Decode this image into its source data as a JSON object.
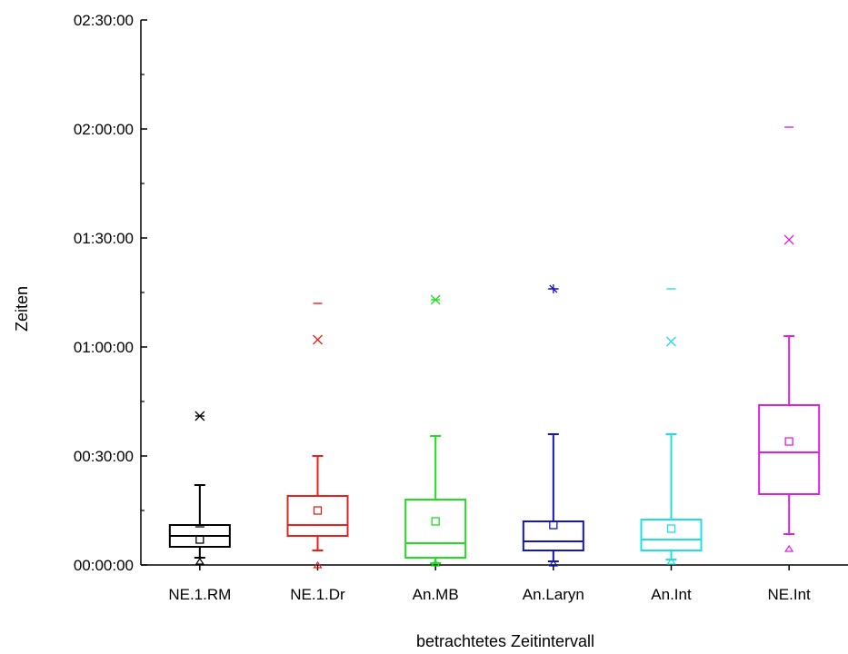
{
  "chart_data": {
    "type": "boxplot",
    "xlabel": "betrachtetes Zeitintervall",
    "ylabel": "Zeiten",
    "yunit": "minutes",
    "ylim": [
      0,
      150
    ],
    "yticks": [
      0,
      30,
      60,
      90,
      120,
      150
    ],
    "ytick_labels": [
      "00:00:00",
      "00:30:00",
      "01:00:00",
      "01:30:00",
      "02:00:00",
      "02:30:00"
    ],
    "grid": false,
    "legend": "none",
    "categories": [
      "NE.1.RM",
      "NE.1.Dr",
      "An.MB",
      "An.Laryn",
      "An.Int",
      "NE.Int"
    ],
    "series": [
      {
        "category": "NE.1.RM",
        "color": "#000000",
        "whisker_low": 2,
        "q1": 5,
        "median": 8,
        "q3": 11,
        "whisker_high": 22,
        "mean": 7,
        "max_marker": 41,
        "min_marker": 1,
        "extra_marker": 10.5
      },
      {
        "category": "NE.1.Dr",
        "color": "#e8211b",
        "whisker_low": 4,
        "q1": 8,
        "median": 11,
        "q3": 19,
        "whisker_high": 30,
        "mean": 15,
        "max_marker": 72,
        "p99_marker": 62,
        "min_marker": 0
      },
      {
        "category": "An.MB",
        "color": "#1ee01e",
        "whisker_low": 0.5,
        "q1": 2,
        "median": 6,
        "q3": 18,
        "whisker_high": 35.5,
        "mean": 12,
        "max_marker": 73,
        "min_marker": 0.5
      },
      {
        "category": "An.Laryn",
        "color": "#1414c8",
        "whisker_low": 1,
        "q1": 4,
        "median": 6.5,
        "q3": 12,
        "whisker_high": 36,
        "mean": 11,
        "max_marker": 76,
        "min_marker": 0.5
      },
      {
        "category": "An.Int",
        "color": "#1ee0e0",
        "whisker_low": 1.5,
        "q1": 4,
        "median": 7,
        "q3": 12.5,
        "whisker_high": 36,
        "mean": 10,
        "max_marker": 76,
        "p99_marker": 61.5,
        "min_marker": 1
      },
      {
        "category": "NE.Int",
        "color": "#e020e0",
        "whisker_low": 8.5,
        "q1": 19.5,
        "median": 31,
        "q3": 44,
        "whisker_high": 63,
        "mean": 34,
        "max_marker": 120.5,
        "p99_marker": 89.5,
        "min_marker": 4.5
      }
    ]
  }
}
